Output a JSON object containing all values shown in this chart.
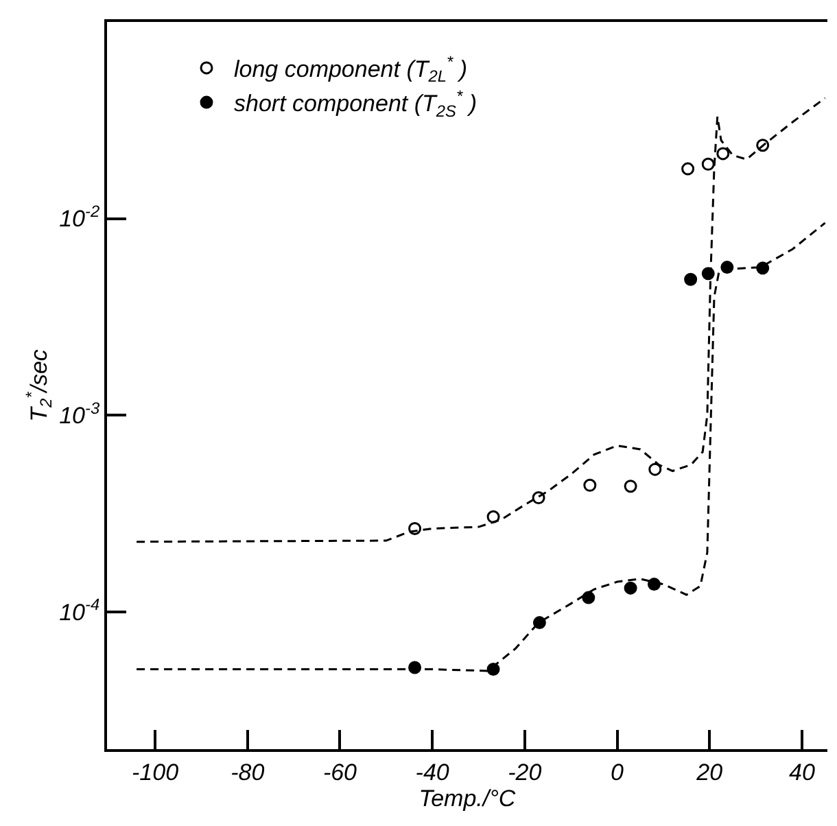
{
  "chart_data": {
    "type": "scatter",
    "xlabel": "Temp./°C",
    "ylabel": "T$_{2}$$^{*}$/sec",
    "xlim": [
      -110.4,
      45.5
    ],
    "ylim": [
      2e-05,
      0.1
    ],
    "xticks": [
      -100,
      -80,
      -60,
      -40,
      -20,
      0,
      20,
      40
    ],
    "yticks": [
      {
        "value": 0.0001,
        "label": "10$^{-4}$"
      },
      {
        "value": 0.001,
        "label": "10$^{-3}$"
      },
      {
        "value": 0.01,
        "label": "10$^{-2}$"
      }
    ],
    "log": "y",
    "legend": "top left",
    "series": [
      {
        "name": "long component (T$_{2L}$$^{*}$ )",
        "color": "#000000",
        "marker": "circle-open",
        "x": [
          -43.8,
          -26.8,
          -17.0,
          -5.9,
          2.9,
          8.2,
          15.3,
          19.7,
          22.9,
          31.5
        ],
        "values": [
          0.000265,
          0.000304,
          0.00038,
          0.00044,
          0.000435,
          0.00053,
          0.0179,
          0.0189,
          0.0214,
          0.0236
        ]
      },
      {
        "name": "short component (T$_{2S}$$^{*}$ )",
        "color": "#000000",
        "marker": "circle",
        "x": [
          -43.8,
          -26.8,
          -16.8,
          -6.2,
          2.9,
          8.0,
          15.9,
          19.7,
          23.8,
          31.5
        ],
        "values": [
          5.2e-05,
          5.1e-05,
          8.8e-05,
          0.000118,
          0.000132,
          0.000138,
          0.0049,
          0.00525,
          0.00565,
          0.0056
        ]
      },
      {
        "type": "line",
        "color": "#000000",
        "line_style": "dashed",
        "marker": "none",
        "x": [
          -104,
          -50,
          -45,
          -40,
          -30,
          -25,
          -20,
          -15,
          -10,
          -5,
          0,
          5,
          9,
          12,
          16,
          18.5,
          19.5,
          20.2,
          21,
          21.7,
          22.5,
          25,
          28,
          32,
          38,
          45
        ],
        "values": [
          0.000227,
          0.00023,
          0.000255,
          0.000265,
          0.00027,
          0.000295,
          0.00035,
          0.00041,
          0.0005,
          0.00063,
          0.0007,
          0.00067,
          0.00056,
          0.00052,
          0.00056,
          0.00065,
          0.001,
          0.005,
          0.018,
          0.033,
          0.025,
          0.021,
          0.02,
          0.024,
          0.031,
          0.041
        ]
      },
      {
        "type": "line",
        "color": "#000000",
        "line_style": "dashed",
        "marker": "none",
        "x": [
          -104,
          -40,
          -28,
          -22,
          -17,
          -10,
          -5,
          0,
          5,
          10,
          15,
          18,
          19.5,
          20.3,
          21,
          22,
          25,
          31,
          38,
          45
        ],
        "values": [
          5.1e-05,
          5.1e-05,
          5e-05,
          6.5e-05,
          8.8e-05,
          0.00011,
          0.00013,
          0.000142,
          0.000147,
          0.000138,
          0.000122,
          0.000135,
          0.0002,
          0.001,
          0.004,
          0.0053,
          0.00555,
          0.00565,
          0.007,
          0.0095
        ]
      }
    ]
  }
}
